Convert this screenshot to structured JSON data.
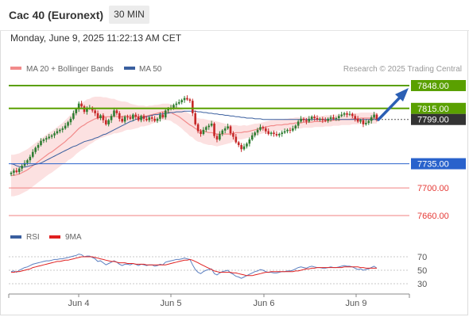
{
  "header": {
    "title": "Cac 40 (Euronext)",
    "timeframe": "30 MIN",
    "timestamp": "Monday, June 9, 2025 11:22:13 AM CET"
  },
  "legend": {
    "ma20": "MA 20 + Bollinger Bands",
    "ma50": "MA 50",
    "rsi": "RSI",
    "rsi_ma": "9MA",
    "credit": "Research © 2025 Trading Central"
  },
  "colors": {
    "up": "#2e7d32",
    "down": "#c62828",
    "ma20": "#f28b8b",
    "ma50": "#3a5f9f",
    "resistance": "#5aa000",
    "support": "#2962cc",
    "lower": "#f08080",
    "current": "#333333",
    "arrow": "#2b5fb4"
  },
  "chart_data": [
    {
      "type": "candlestick",
      "x_ticks": [
        "Jun 4",
        "Jun 5",
        "Jun 6",
        "Jun 9"
      ],
      "ylim": [
        7650,
        7860
      ],
      "levels": [
        {
          "label": "7848.00",
          "value": 7848,
          "kind": "resistance"
        },
        {
          "label": "7815.00",
          "value": 7815,
          "kind": "resistance"
        },
        {
          "label": "7799.00",
          "value": 7799,
          "kind": "current"
        },
        {
          "label": "7735.00",
          "value": 7735,
          "kind": "support"
        },
        {
          "label": "7700.00",
          "value": 7700,
          "kind": "lower"
        },
        {
          "label": "7660.00",
          "value": 7660,
          "kind": "lower"
        }
      ],
      "close": [
        7722,
        7725,
        7723,
        7728,
        7732,
        7736,
        7740,
        7745,
        7752,
        7758,
        7762,
        7768,
        7770,
        7772,
        7774,
        7776,
        7779,
        7782,
        7784,
        7786,
        7790,
        7795,
        7800,
        7808,
        7814,
        7822,
        7818,
        7810,
        7815,
        7816,
        7812,
        7808,
        7801,
        7805,
        7798,
        7792,
        7798,
        7804,
        7812,
        7808,
        7800,
        7796,
        7803,
        7802,
        7800,
        7806,
        7803,
        7798,
        7804,
        7800,
        7798,
        7802,
        7800,
        7797,
        7800,
        7806,
        7802,
        7812,
        7814,
        7816,
        7820,
        7822,
        7824,
        7827,
        7830,
        7828,
        7826,
        7808,
        7792,
        7782,
        7778,
        7784,
        7788,
        7790,
        7793,
        7775,
        7770,
        7778,
        7783,
        7786,
        7789,
        7779,
        7774,
        7766,
        7762,
        7756,
        7760,
        7764,
        7770,
        7776,
        7780,
        7784,
        7788,
        7786,
        7782,
        7778,
        7780,
        7778,
        7776,
        7778,
        7780,
        7782,
        7784,
        7783,
        7786,
        7790,
        7796,
        7800,
        7798,
        7796,
        7800,
        7803,
        7801,
        7799,
        7800,
        7798,
        7797,
        7800,
        7802,
        7800,
        7801,
        7804,
        7806,
        7808,
        7806,
        7807,
        7804,
        7800,
        7796,
        7798,
        7792,
        7794,
        7797,
        7802,
        7806,
        7799
      ],
      "ma20": [
        7718,
        7718,
        7719,
        7720,
        7722,
        7724,
        7726,
        7729,
        7732,
        7735,
        7738,
        7741,
        7744,
        7747,
        7750,
        7752,
        7755,
        7758,
        7761,
        7764,
        7767,
        7771,
        7774,
        7778,
        7782,
        7786,
        7789,
        7791,
        7794,
        7796,
        7798,
        7800,
        7801,
        7802,
        7802,
        7803,
        7803,
        7803,
        7804,
        7803,
        7803,
        7803,
        7804,
        7804,
        7803,
        7803,
        7803,
        7803,
        7804,
        7804,
        7804,
        7805,
        7806,
        7807,
        7808,
        7809,
        7810,
        7810,
        7810,
        7809,
        7807,
        7805,
        7803,
        7800,
        7797,
        7794,
        7791,
        7789,
        7786,
        7784,
        7783,
        7782,
        7781,
        7780,
        7780,
        7779,
        7778,
        7778,
        7778,
        7778,
        7778,
        7778,
        7779,
        7780,
        7780,
        7780,
        7781,
        7781,
        7782,
        7783,
        7784,
        7785,
        7786,
        7787,
        7788,
        7789,
        7790,
        7790,
        7791,
        7791,
        7791,
        7792,
        7792,
        7793,
        7793,
        7794,
        7794,
        7794,
        7795,
        7795,
        7795,
        7795,
        7796,
        7796,
        7796,
        7796,
        7797,
        7797,
        7797,
        7798,
        7798,
        7798,
        7799,
        7799,
        7799,
        7799,
        7800,
        7800,
        7800,
        7801,
        7801,
        7801,
        7801,
        7801,
        7801,
        7801
      ],
      "bb_width": [
        30,
        30,
        30,
        30,
        30,
        30,
        30,
        30,
        30,
        30,
        30,
        30,
        30,
        30,
        30,
        30,
        30,
        30,
        30,
        30,
        31,
        31,
        32,
        33,
        33,
        34,
        34,
        34,
        34,
        33,
        33,
        32,
        31,
        30,
        29,
        28,
        27,
        26,
        25,
        24,
        23,
        22,
        21,
        20,
        19,
        18,
        17,
        16,
        15,
        15,
        14,
        14,
        13,
        13,
        12,
        12,
        12,
        12,
        12,
        12,
        13,
        13,
        14,
        14,
        15,
        15,
        16,
        16,
        17,
        17,
        17,
        18,
        18,
        18,
        18,
        18,
        18,
        17,
        16,
        15,
        14,
        13,
        12,
        11,
        10,
        10,
        10,
        9,
        9,
        9,
        9,
        8,
        8,
        8,
        8,
        8,
        8,
        8,
        8,
        8,
        8,
        8,
        8,
        8,
        8,
        8,
        8,
        8,
        8,
        8,
        8,
        8,
        8,
        8,
        8,
        8,
        8,
        8,
        8,
        8,
        8,
        8,
        8,
        8,
        8,
        8,
        8,
        8,
        8,
        8,
        8,
        8,
        8,
        8,
        8,
        8
      ],
      "ma50": [
        7735,
        7734,
        7732,
        7731,
        7730,
        7730,
        7731,
        7732,
        7733,
        7734,
        7735,
        7736,
        7738,
        7740,
        7742,
        7744,
        7746,
        7748,
        7750,
        7752,
        7754,
        7756,
        7758,
        7760,
        7761,
        7763,
        7765,
        7767,
        7768,
        7769,
        7770,
        7772,
        7773,
        7775,
        7777,
        7778,
        7780,
        7782,
        7784,
        7786,
        7788,
        7790,
        7792,
        7794,
        7796,
        7797,
        7799,
        7800,
        7801,
        7802,
        7803,
        7804,
        7805,
        7806,
        7806,
        7807,
        7807,
        7808,
        7808,
        7809,
        7809,
        7810,
        7810,
        7810,
        7811,
        7811,
        7811,
        7811,
        7811,
        7810,
        7810,
        7809,
        7809,
        7808,
        7808,
        7807,
        7807,
        7806,
        7806,
        7805,
        7805,
        7804,
        7804,
        7803,
        7803,
        7802,
        7802,
        7801,
        7801,
        7801,
        7800,
        7800,
        7800,
        7799,
        7799,
        7799,
        7799,
        7799,
        7799,
        7799,
        7799,
        7799,
        7799,
        7799,
        7799,
        7799,
        7799,
        7799,
        7799,
        7799,
        7799,
        7799,
        7799,
        7799,
        7799,
        7799,
        7799,
        7799,
        7799,
        7799,
        7799,
        7799,
        7799,
        7799,
        7799,
        7799,
        7799,
        7799,
        7799,
        7799,
        7799,
        7799,
        7799,
        7799,
        7799,
        7799
      ]
    },
    {
      "type": "line",
      "name": "RSI",
      "y_ticks": [
        "70",
        "50",
        "30"
      ],
      "ylim": [
        20,
        85
      ],
      "rsi": [
        48,
        49,
        47,
        50,
        52,
        54,
        55,
        57,
        59,
        60,
        61,
        62,
        63,
        64,
        64,
        65,
        66,
        66,
        67,
        67,
        68,
        69,
        70,
        71,
        72,
        74,
        73,
        70,
        71,
        71,
        69,
        67,
        63,
        64,
        61,
        58,
        60,
        62,
        64,
        62,
        59,
        57,
        59,
        59,
        58,
        60,
        59,
        57,
        59,
        58,
        57,
        58,
        58,
        56,
        57,
        59,
        58,
        62,
        63,
        64,
        65,
        66,
        66,
        67,
        68,
        67,
        66,
        58,
        51,
        47,
        45,
        48,
        50,
        51,
        52,
        45,
        43,
        46,
        48,
        49,
        50,
        46,
        44,
        41,
        40,
        38,
        40,
        42,
        44,
        46,
        48,
        49,
        51,
        50,
        48,
        47,
        47,
        46,
        46,
        47,
        48,
        48,
        49,
        49,
        50,
        52,
        54,
        55,
        54,
        53,
        55,
        56,
        55,
        54,
        54,
        53,
        53,
        54,
        55,
        54,
        54,
        55,
        56,
        57,
        56,
        56,
        55,
        53,
        51,
        52,
        50,
        51,
        52,
        54,
        56,
        53
      ],
      "rsi_ma": [
        47,
        47,
        48,
        48,
        49,
        50,
        51,
        52,
        54,
        55,
        56,
        57,
        58,
        59,
        60,
        61,
        62,
        63,
        63,
        64,
        65,
        65,
        66,
        67,
        68,
        69,
        70,
        70,
        70,
        70,
        70,
        69,
        68,
        67,
        66,
        65,
        64,
        63,
        63,
        62,
        61,
        61,
        61,
        60,
        60,
        60,
        59,
        59,
        59,
        59,
        58,
        58,
        58,
        58,
        58,
        58,
        58,
        58,
        59,
        60,
        61,
        62,
        63,
        64,
        65,
        65,
        66,
        65,
        63,
        61,
        59,
        57,
        55,
        53,
        51,
        49,
        48,
        47,
        47,
        47,
        47,
        47,
        46,
        46,
        45,
        44,
        43,
        42,
        42,
        42,
        43,
        44,
        45,
        46,
        47,
        47,
        48,
        48,
        48,
        48,
        48,
        48,
        48,
        48,
        48,
        49,
        49,
        50,
        51,
        52,
        52,
        53,
        53,
        54,
        54,
        54,
        54,
        54,
        54,
        54,
        54,
        54,
        54,
        55,
        55,
        55,
        55,
        55,
        55,
        54,
        54,
        53,
        53,
        53,
        53,
        53
      ]
    }
  ]
}
